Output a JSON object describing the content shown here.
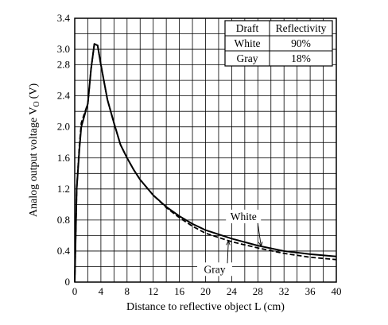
{
  "chart_data": {
    "type": "line",
    "title": "",
    "xlabel": "Distance to reflective object L (cm)",
    "ylabel": "Analog output voltage V",
    "ylabel_subscript": "O",
    "ylabel_unit": "(V)",
    "xlim": [
      0,
      40
    ],
    "ylim": [
      0,
      3.4
    ],
    "x_ticks": [
      0,
      4,
      8,
      12,
      16,
      20,
      24,
      28,
      32,
      36,
      40
    ],
    "y_ticks": [
      0,
      0.4,
      0.8,
      1.2,
      1.6,
      2.0,
      2.4,
      2.8,
      3.0,
      3.4
    ],
    "y_tick_labels": [
      "0",
      "0.4",
      "0.8",
      "1.2",
      "1.6",
      "2.0",
      "2.4",
      "2.8",
      "3.0",
      "3.4"
    ],
    "grid": true,
    "grid_x_step": 2,
    "grid_y_step": 0.2,
    "series": [
      {
        "name": "White",
        "style": "solid",
        "x": [
          0,
          0.3,
          0.7,
          1.0,
          1.5,
          2.0,
          2.5,
          3.0,
          3.5,
          4.0,
          5.0,
          6.0,
          7.0,
          8.0,
          9.0,
          10,
          12,
          14,
          16,
          18,
          20,
          24,
          28,
          32,
          36,
          40
        ],
        "y": [
          0,
          1.2,
          1.7,
          2.0,
          2.15,
          2.3,
          2.75,
          3.07,
          3.05,
          2.8,
          2.35,
          2.05,
          1.77,
          1.6,
          1.45,
          1.32,
          1.12,
          0.97,
          0.85,
          0.75,
          0.67,
          0.56,
          0.47,
          0.4,
          0.36,
          0.33
        ]
      },
      {
        "name": "Gray",
        "style": "dashed",
        "x": [
          0,
          0.3,
          0.7,
          1.0,
          1.5,
          2.0,
          2.5,
          3.0,
          3.5,
          4.0,
          5.0,
          6.0,
          7.0,
          8.0,
          9.0,
          10,
          12,
          14,
          16,
          18,
          20,
          24,
          28,
          32,
          36,
          40
        ],
        "y": [
          0,
          1.2,
          1.75,
          2.05,
          2.18,
          2.3,
          2.75,
          3.07,
          3.05,
          2.8,
          2.35,
          2.05,
          1.77,
          1.6,
          1.45,
          1.32,
          1.12,
          0.96,
          0.83,
          0.72,
          0.63,
          0.52,
          0.44,
          0.37,
          0.32,
          0.29
        ]
      }
    ],
    "legend": {
      "placement": "top-right",
      "headers": [
        "Draft",
        "Reflectivity"
      ],
      "rows": [
        [
          "White",
          "90%"
        ],
        [
          "Gray",
          "18%"
        ]
      ]
    },
    "annotations": [
      {
        "text": "White",
        "points_to_series": "White",
        "at_x": 28.5
      },
      {
        "text": "Gray",
        "points_to_series": "Gray",
        "at_x": 23.5
      }
    ]
  }
}
